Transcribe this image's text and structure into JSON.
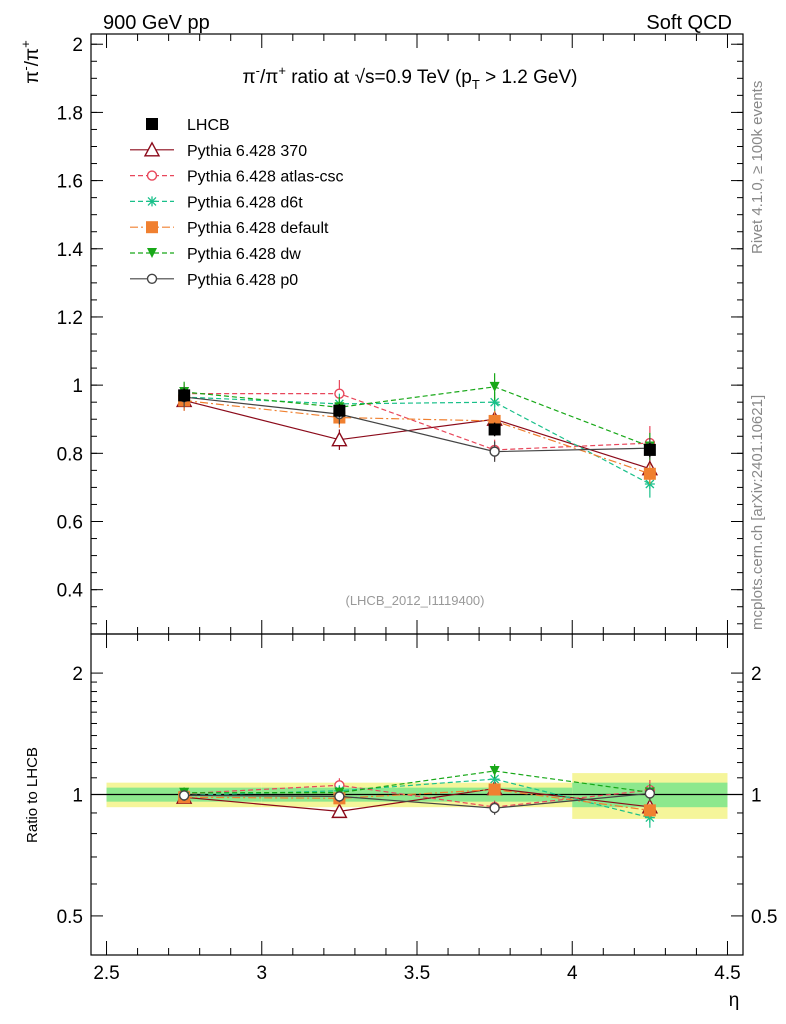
{
  "header": {
    "left": "900 GeV pp",
    "right": "Soft QCD"
  },
  "title": {
    "prefix": "π",
    "prefix_sup": "-",
    "mid": "/π",
    "mid_sup": "+",
    "rest": " ratio at √s=0.9 TeV (p",
    "sub": "T",
    "tail": " > 1.2 GeV)"
  },
  "ylabel_top": {
    "a": "π",
    "a_sup": "-",
    "b": "/π",
    "b_sup": "+"
  },
  "ylabel_ratio": "Ratio to LHCB",
  "xlabel": "η",
  "side_text_top": "Rivet 4.1.0, ≥ 100k events",
  "side_text_bottom": "mcplots.cern.ch [arXiv:2401.10621]",
  "analysis_tag": "(LHCB_2012_I1119400)",
  "colors": {
    "LHCB": "#000000",
    "p370": "#8b0a1a",
    "atlas": "#e8475b",
    "d6t": "#19c08a",
    "default": "#f08030",
    "dw": "#18a818",
    "p0": "#444444",
    "band_yellow": "#f5f59a",
    "band_green": "#8de88d"
  },
  "chart_data": {
    "type": "line",
    "x": [
      2.75,
      3.25,
      3.75,
      4.25
    ],
    "xlim": [
      2.45,
      4.55
    ],
    "xticks": [
      2.5,
      3,
      3.5,
      4,
      4.5
    ],
    "xtick_labels": [
      "2.5",
      "3",
      "3.5",
      "4",
      "4.5"
    ],
    "top_ylim": [
      0.27,
      2.03
    ],
    "top_yticks": [
      0.4,
      0.6,
      0.8,
      1,
      1.2,
      1.4,
      1.6,
      1.8,
      2
    ],
    "top_ytick_labels": [
      "0.4",
      "0.6",
      "0.8",
      "1",
      "1.2",
      "1.4",
      "1.6",
      "1.8",
      "2"
    ],
    "ratio_ylim": [
      0.4,
      2.5
    ],
    "ratio_yticks": [
      0.5,
      1,
      2
    ],
    "ratio_ytick_labels": [
      "0.5",
      "1",
      "2"
    ],
    "reference": {
      "name": "LHCB",
      "x": [
        2.75,
        3.25,
        3.75,
        4.25
      ],
      "xerr": 0.25,
      "values": [
        0.97,
        0.925,
        0.87,
        0.81
      ],
      "errors": [
        0.02,
        0.02,
        0.02,
        0.02
      ],
      "band_stat": [
        0.04,
        0.04,
        0.04,
        0.07
      ],
      "band_total": [
        0.07,
        0.07,
        0.07,
        0.13
      ]
    },
    "series": [
      {
        "name": "Pythia 6.428 370",
        "key": "p370",
        "style": "solid",
        "marker": "triangle-open",
        "values": [
          0.955,
          0.84,
          0.9,
          0.755
        ],
        "errors": [
          0.03,
          0.03,
          0.03,
          0.03
        ]
      },
      {
        "name": "Pythia 6.428 atlas-csc",
        "key": "atlas",
        "style": "dashed",
        "marker": "circle-open",
        "values": [
          0.975,
          0.975,
          0.81,
          0.83
        ],
        "errors": [
          0.03,
          0.04,
          0.03,
          0.05
        ]
      },
      {
        "name": "Pythia 6.428 d6t",
        "key": "d6t",
        "style": "dashed",
        "marker": "asterisk",
        "values": [
          0.965,
          0.945,
          0.95,
          0.71
        ],
        "errors": [
          0.03,
          0.03,
          0.03,
          0.04
        ]
      },
      {
        "name": "Pythia 6.428 default",
        "key": "default",
        "style": "dashdot",
        "marker": "square-filled",
        "values": [
          0.955,
          0.905,
          0.895,
          0.74
        ],
        "errors": [
          0.03,
          0.03,
          0.03,
          0.03
        ]
      },
      {
        "name": "Pythia 6.428 dw",
        "key": "dw",
        "style": "dashed",
        "marker": "triangle-down",
        "values": [
          0.98,
          0.935,
          0.995,
          0.82
        ],
        "errors": [
          0.03,
          0.03,
          0.04,
          0.04
        ]
      },
      {
        "name": "Pythia 6.428 p0",
        "key": "p0",
        "style": "solid",
        "marker": "circle-open",
        "values": [
          0.965,
          0.915,
          0.805,
          0.815
        ],
        "errors": [
          0.03,
          0.03,
          0.03,
          0.03
        ]
      }
    ]
  }
}
